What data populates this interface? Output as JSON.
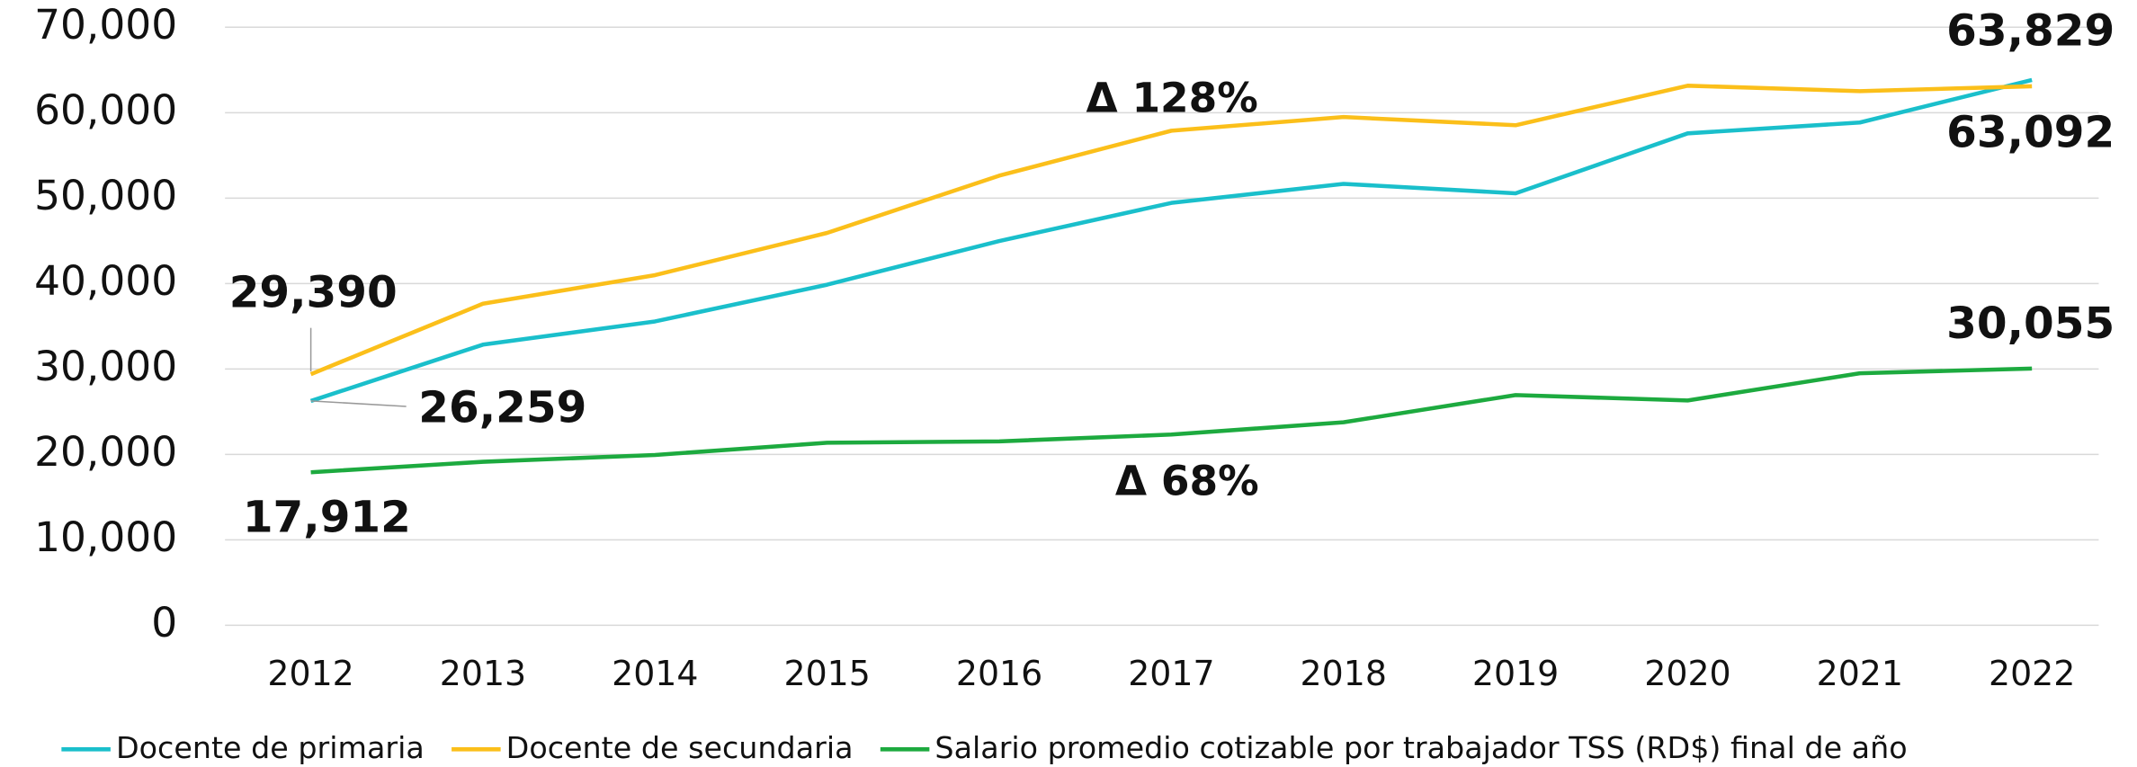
{
  "chart_data": {
    "type": "line",
    "categories": [
      "2012",
      "2013",
      "2014",
      "2015",
      "2016",
      "2017",
      "2018",
      "2019",
      "2020",
      "2021",
      "2022"
    ],
    "ylim": [
      0,
      70000
    ],
    "yticks": [
      0,
      {
        "value": 10000,
        "label": "10,000"
      },
      {
        "value": 20000,
        "label": "20,000"
      },
      {
        "value": 30000,
        "label": "30,000"
      },
      {
        "value": 40000,
        "label": "40,000"
      },
      {
        "value": 50000,
        "label": "50,000"
      },
      {
        "value": 60000,
        "label": "60,000"
      },
      {
        "value": 70000,
        "label": "70,000"
      }
    ],
    "grid": true,
    "legend": "bottom",
    "series": [
      {
        "name": "Docente de primaria",
        "color": "#1abfcb",
        "values": [
          26259,
          32850,
          35570,
          39870,
          44980,
          49440,
          51670,
          50560,
          57580,
          58850,
          63829
        ],
        "value_labels": [
          "26,259",
          null,
          null,
          null,
          null,
          null,
          null,
          null,
          null,
          null,
          "63,829"
        ]
      },
      {
        "name": "Docente de secundaria",
        "color": "#fbbf1a",
        "values": [
          29390,
          37640,
          40990,
          45930,
          52630,
          57890,
          59490,
          58530,
          63160,
          62520,
          63092
        ],
        "value_labels": [
          "29,390",
          null,
          null,
          null,
          null,
          null,
          null,
          null,
          null,
          null,
          "63,092"
        ]
      },
      {
        "name": "Salario promedio cotizable por trabajador TSS (RD$) final de año",
        "color": "#1daa3f",
        "values": [
          17912,
          19140,
          19940,
          21370,
          21530,
          22330,
          23760,
          26950,
          26320,
          29500,
          30055
        ],
        "value_labels": [
          "17,912",
          null,
          null,
          null,
          null,
          null,
          null,
          null,
          null,
          null,
          "30,055"
        ]
      }
    ],
    "annotations": [
      "Δ 128%",
      "Δ 68%"
    ]
  }
}
